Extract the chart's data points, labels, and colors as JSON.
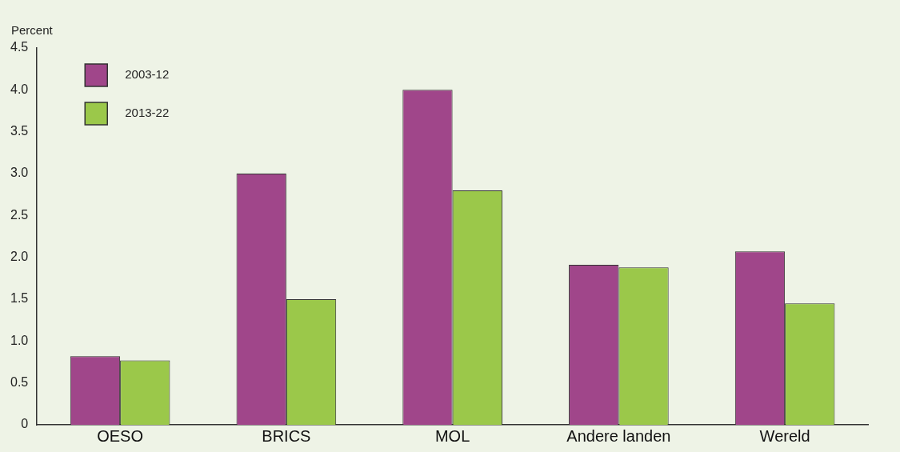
{
  "chart_data": {
    "type": "bar",
    "ylabel": "Percent",
    "categories": [
      "OESO",
      "BRICS",
      "MOL",
      "Andere landen",
      "Wereld"
    ],
    "series": [
      {
        "name": "2003-12",
        "color": "#a0468a",
        "values": [
          0.82,
          3.0,
          4.0,
          1.91,
          2.07
        ]
      },
      {
        "name": "2013-22",
        "color": "#9bc84a",
        "values": [
          0.77,
          1.5,
          2.8,
          1.88,
          1.45
        ]
      }
    ],
    "ylim": [
      0,
      4.5
    ],
    "yticks": [
      {
        "value": 0,
        "label": "0"
      },
      {
        "value": 0.5,
        "label": "0.5"
      },
      {
        "value": 1,
        "label": "1.0"
      },
      {
        "value": 1.5,
        "label": "1.5"
      },
      {
        "value": 2,
        "label": "2.0"
      },
      {
        "value": 2.5,
        "label": "2.5"
      },
      {
        "value": 3,
        "label": "3.0"
      },
      {
        "value": 3.5,
        "label": "3.5"
      },
      {
        "value": 4,
        "label": "4.0"
      },
      {
        "value": 4.5,
        "label": "4.5"
      }
    ],
    "grid": false,
    "legend": "top left"
  }
}
